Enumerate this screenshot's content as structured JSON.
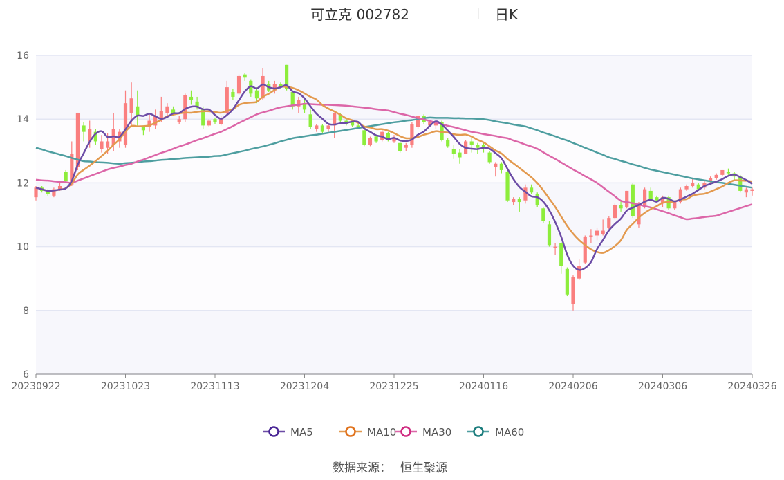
{
  "header": {
    "stock": "可立克 002782",
    "period": "日K"
  },
  "source": {
    "label": "数据来源：",
    "value": "恒生聚源"
  },
  "chart_data": {
    "type": "candlestick",
    "title": "可立克 002782 日K",
    "ylim": [
      6,
      16
    ],
    "yticks": [
      6,
      8,
      10,
      12,
      14,
      16
    ],
    "xtick_labels": [
      "20230922",
      "20231023",
      "20231113",
      "20231204",
      "20231225",
      "20240116",
      "20240206",
      "20240306",
      "20240326"
    ],
    "grid": true,
    "legend_position": "bottom",
    "colors": {
      "up": "#fa7f7f",
      "down": "#8ded3c",
      "MA5": "#6c4ca6",
      "MA10": "#e39a4f",
      "MA30": "#dc66a8",
      "MA60": "#4e9ea0",
      "MA5_marker": "#4a2796",
      "MA10_marker": "#e0731e",
      "MA30_marker": "#cf2a80",
      "MA60_marker": "#1d7d7d"
    },
    "ohlc_fields": [
      "open",
      "close",
      "low",
      "high"
    ],
    "candles": [
      [
        11.55,
        11.85,
        11.45,
        11.9
      ],
      [
        11.85,
        11.75,
        11.7,
        11.9
      ],
      [
        11.75,
        11.65,
        11.6,
        11.8
      ],
      [
        11.6,
        11.8,
        11.55,
        11.85
      ],
      [
        11.8,
        11.9,
        11.75,
        12.0
      ],
      [
        12.35,
        12.05,
        12.0,
        12.4
      ],
      [
        11.95,
        12.9,
        11.9,
        13.3
      ],
      [
        12.5,
        14.2,
        12.4,
        14.2
      ],
      [
        13.8,
        13.6,
        13.3,
        13.9
      ],
      [
        13.3,
        13.7,
        13.1,
        13.95
      ],
      [
        13.6,
        13.3,
        13.2,
        13.7
      ],
      [
        13.05,
        13.3,
        12.95,
        13.5
      ],
      [
        13.1,
        13.3,
        12.9,
        13.55
      ],
      [
        13.2,
        13.7,
        13.0,
        14.2
      ],
      [
        13.3,
        13.6,
        13.1,
        13.7
      ],
      [
        13.2,
        14.5,
        13.1,
        14.9
      ],
      [
        14.2,
        14.65,
        13.8,
        15.15
      ],
      [
        14.4,
        14.1,
        13.8,
        14.9
      ],
      [
        13.75,
        13.65,
        13.5,
        13.8
      ],
      [
        13.75,
        13.95,
        13.6,
        14.2
      ],
      [
        13.8,
        14.1,
        13.7,
        14.3
      ],
      [
        14.0,
        14.25,
        13.9,
        14.7
      ],
      [
        14.2,
        14.4,
        14.1,
        14.5
      ],
      [
        14.3,
        14.2,
        14.1,
        14.4
      ],
      [
        13.9,
        14.0,
        13.85,
        14.1
      ],
      [
        14.0,
        14.75,
        13.9,
        14.8
      ],
      [
        14.7,
        14.6,
        14.45,
        14.9
      ],
      [
        14.55,
        14.4,
        14.3,
        14.7
      ],
      [
        14.3,
        13.8,
        13.7,
        14.4
      ],
      [
        13.8,
        13.95,
        13.75,
        14.0
      ],
      [
        14.0,
        13.9,
        13.85,
        14.05
      ],
      [
        13.85,
        14.0,
        13.8,
        14.1
      ],
      [
        14.2,
        15.0,
        14.1,
        15.2
      ],
      [
        14.85,
        14.7,
        14.6,
        14.95
      ],
      [
        14.8,
        15.35,
        14.75,
        15.4
      ],
      [
        15.4,
        15.3,
        15.2,
        15.45
      ],
      [
        15.2,
        14.8,
        14.7,
        15.25
      ],
      [
        14.9,
        14.65,
        14.5,
        15.0
      ],
      [
        14.65,
        15.35,
        14.6,
        15.6
      ],
      [
        15.1,
        14.9,
        14.85,
        15.2
      ],
      [
        14.9,
        15.1,
        14.8,
        15.2
      ],
      [
        15.1,
        15.0,
        14.95,
        15.15
      ],
      [
        15.7,
        14.95,
        14.9,
        15.7
      ],
      [
        14.85,
        14.4,
        14.3,
        14.9
      ],
      [
        14.4,
        14.6,
        14.2,
        14.7
      ],
      [
        14.5,
        14.3,
        14.2,
        14.6
      ],
      [
        14.15,
        13.75,
        13.7,
        14.3
      ],
      [
        13.7,
        13.8,
        13.6,
        13.85
      ],
      [
        13.8,
        13.6,
        13.55,
        13.85
      ],
      [
        13.7,
        13.8,
        13.6,
        13.85
      ],
      [
        13.8,
        14.2,
        13.4,
        14.2
      ],
      [
        14.15,
        13.95,
        13.9,
        14.2
      ],
      [
        13.95,
        13.85,
        13.8,
        14.05
      ],
      [
        13.9,
        13.8,
        13.75,
        13.95
      ],
      [
        13.8,
        13.75,
        13.7,
        13.85
      ],
      [
        13.65,
        13.2,
        13.15,
        13.7
      ],
      [
        13.2,
        13.4,
        13.15,
        13.45
      ],
      [
        13.45,
        13.3,
        13.25,
        13.5
      ],
      [
        13.35,
        13.6,
        13.3,
        13.65
      ],
      [
        13.55,
        13.35,
        13.3,
        13.6
      ],
      [
        13.3,
        13.4,
        13.25,
        13.5
      ],
      [
        13.25,
        13.0,
        12.95,
        13.3
      ],
      [
        13.1,
        13.2,
        13.0,
        13.25
      ],
      [
        13.2,
        13.85,
        13.1,
        13.9
      ],
      [
        13.75,
        14.1,
        13.7,
        14.1
      ],
      [
        14.1,
        13.9,
        13.85,
        14.15
      ],
      [
        13.8,
        13.9,
        13.75,
        13.95
      ],
      [
        13.8,
        13.9,
        13.7,
        13.95
      ],
      [
        13.9,
        13.35,
        13.3,
        13.95
      ],
      [
        13.35,
        13.15,
        13.1,
        13.4
      ],
      [
        13.05,
        12.9,
        12.75,
        13.2
      ],
      [
        12.95,
        12.8,
        12.6,
        13.05
      ],
      [
        12.9,
        13.3,
        12.9,
        13.35
      ],
      [
        13.3,
        13.2,
        12.95,
        13.4
      ],
      [
        13.2,
        13.1,
        12.9,
        13.25
      ],
      [
        13.2,
        13.1,
        12.95,
        13.25
      ],
      [
        12.95,
        12.65,
        12.6,
        13.0
      ],
      [
        12.5,
        12.6,
        12.2,
        12.65
      ],
      [
        12.6,
        12.4,
        12.3,
        12.65
      ],
      [
        12.35,
        11.45,
        11.4,
        12.4
      ],
      [
        11.4,
        11.5,
        11.3,
        11.55
      ],
      [
        11.5,
        11.4,
        11.1,
        11.55
      ],
      [
        11.45,
        11.85,
        11.35,
        11.95
      ],
      [
        11.85,
        11.7,
        11.65,
        11.95
      ],
      [
        11.65,
        11.3,
        11.25,
        11.7
      ],
      [
        11.2,
        10.8,
        10.75,
        11.25
      ],
      [
        10.7,
        10.05,
        10.0,
        10.8
      ],
      [
        9.95,
        10.0,
        9.75,
        10.1
      ],
      [
        10.1,
        9.4,
        9.15,
        10.15
      ],
      [
        9.3,
        8.5,
        8.45,
        9.35
      ],
      [
        8.2,
        9.05,
        8.0,
        9.1
      ],
      [
        9.0,
        9.4,
        8.95,
        9.6
      ],
      [
        9.5,
        10.3,
        9.45,
        10.35
      ],
      [
        10.3,
        10.35,
        10.1,
        10.55
      ],
      [
        10.35,
        10.5,
        10.2,
        10.6
      ],
      [
        10.4,
        10.5,
        10.35,
        10.85
      ],
      [
        10.6,
        10.9,
        10.55,
        10.95
      ],
      [
        10.9,
        11.3,
        10.85,
        11.35
      ],
      [
        11.3,
        11.2,
        11.1,
        11.45
      ],
      [
        11.25,
        11.75,
        11.2,
        11.75
      ],
      [
        11.95,
        10.95,
        10.9,
        12.0
      ],
      [
        10.7,
        11.35,
        10.6,
        11.4
      ],
      [
        11.25,
        11.8,
        11.2,
        11.85
      ],
      [
        11.75,
        11.5,
        11.45,
        11.85
      ],
      [
        11.55,
        11.45,
        11.4,
        11.6
      ],
      [
        11.35,
        11.55,
        11.25,
        11.6
      ],
      [
        11.55,
        11.2,
        11.15,
        11.6
      ],
      [
        11.2,
        11.4,
        11.15,
        11.45
      ],
      [
        11.4,
        11.8,
        11.35,
        11.85
      ],
      [
        11.8,
        11.9,
        11.75,
        11.95
      ],
      [
        11.9,
        12.0,
        11.85,
        12.15
      ],
      [
        11.95,
        11.8,
        11.75,
        12.0
      ],
      [
        11.85,
        12.0,
        11.8,
        12.05
      ],
      [
        12.05,
        12.15,
        12.0,
        12.2
      ],
      [
        12.15,
        12.25,
        12.1,
        12.3
      ],
      [
        12.25,
        12.4,
        12.2,
        12.4
      ],
      [
        12.35,
        12.3,
        12.25,
        12.45
      ],
      [
        12.3,
        12.2,
        12.1,
        12.35
      ],
      [
        12.2,
        11.75,
        11.7,
        12.25
      ],
      [
        11.7,
        11.8,
        11.55,
        11.85
      ],
      [
        11.75,
        11.8,
        11.6,
        11.85
      ]
    ],
    "series": [
      {
        "name": "MA5",
        "window": 5
      },
      {
        "name": "MA10",
        "window": 10
      },
      {
        "name": "MA30",
        "values": [
          12.1,
          12.08,
          12.07,
          12.05,
          12.03,
          12.02,
          12.0,
          12.07,
          12.14,
          12.21,
          12.28,
          12.35,
          12.42,
          12.47,
          12.51,
          12.56,
          12.6,
          12.67,
          12.73,
          12.8,
          12.87,
          12.94,
          13.0,
          13.07,
          13.14,
          13.2,
          13.27,
          13.34,
          13.4,
          13.47,
          13.54,
          13.6,
          13.69,
          13.78,
          13.88,
          13.97,
          14.06,
          14.15,
          14.21,
          14.26,
          14.32,
          14.37,
          14.4,
          14.43,
          14.45,
          14.48,
          14.47,
          14.46,
          14.45,
          14.45,
          14.44,
          14.43,
          14.42,
          14.4,
          14.38,
          14.36,
          14.34,
          14.31,
          14.29,
          14.27,
          14.22,
          14.17,
          14.13,
          14.08,
          14.03,
          13.99,
          13.94,
          13.89,
          13.84,
          13.79,
          13.75,
          13.7,
          13.65,
          13.6,
          13.57,
          13.53,
          13.5,
          13.47,
          13.43,
          13.4,
          13.33,
          13.27,
          13.2,
          13.14,
          13.07,
          12.96,
          12.85,
          12.75,
          12.64,
          12.53,
          12.42,
          12.32,
          12.21,
          12.11,
          12.0,
          11.86,
          11.72,
          11.58,
          11.44,
          11.4,
          11.36,
          11.32,
          11.27,
          11.23,
          11.17,
          11.11,
          11.05,
          10.98,
          10.92,
          10.86,
          10.88,
          10.9,
          10.93,
          10.95,
          10.97,
          11.03,
          11.09,
          11.15,
          11.21,
          11.27,
          11.33
        ]
      },
      {
        "name": "MA60",
        "values": [
          13.1,
          13.05,
          12.99,
          12.94,
          12.89,
          12.84,
          12.78,
          12.73,
          12.68,
          12.67,
          12.65,
          12.64,
          12.63,
          12.61,
          12.6,
          12.62,
          12.63,
          12.65,
          12.67,
          12.68,
          12.7,
          12.72,
          12.73,
          12.75,
          12.76,
          12.78,
          12.79,
          12.8,
          12.81,
          12.82,
          12.84,
          12.85,
          12.89,
          12.93,
          12.97,
          13.01,
          13.06,
          13.1,
          13.14,
          13.19,
          13.24,
          13.3,
          13.35,
          13.4,
          13.43,
          13.46,
          13.49,
          13.51,
          13.54,
          13.57,
          13.6,
          13.63,
          13.66,
          13.69,
          13.72,
          13.75,
          13.78,
          13.81,
          13.84,
          13.87,
          13.9,
          13.92,
          13.95,
          13.97,
          14.0,
          14.03,
          14.05,
          14.04,
          14.04,
          14.04,
          14.03,
          14.03,
          14.02,
          14.02,
          14.01,
          14.0,
          13.97,
          13.93,
          13.9,
          13.87,
          13.83,
          13.8,
          13.77,
          13.71,
          13.65,
          13.58,
          13.52,
          13.46,
          13.39,
          13.33,
          13.25,
          13.18,
          13.1,
          13.03,
          12.95,
          12.88,
          12.8,
          12.75,
          12.69,
          12.64,
          12.58,
          12.53,
          12.47,
          12.42,
          12.38,
          12.34,
          12.3,
          12.26,
          12.22,
          12.18,
          12.14,
          12.11,
          12.08,
          12.05,
          12.02,
          12.0,
          11.97,
          11.94,
          11.91,
          11.88,
          11.85
        ]
      }
    ]
  }
}
